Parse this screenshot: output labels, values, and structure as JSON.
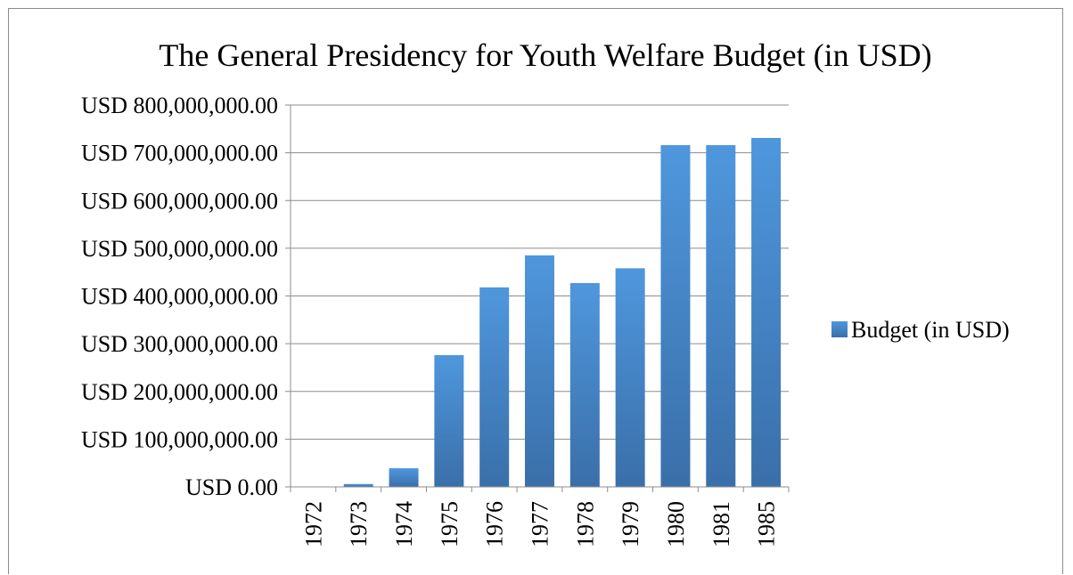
{
  "chart_data": {
    "type": "bar",
    "title": "The General Presidency for Youth Welfare Budget (in USD)",
    "xlabel": "",
    "ylabel": "",
    "categories": [
      "1972",
      "1973",
      "1974",
      "1975",
      "1976",
      "1977",
      "1978",
      "1979",
      "1980",
      "1981",
      "1985"
    ],
    "series": [
      {
        "name": "Budget (in USD)",
        "values": [
          0,
          6000000,
          39000000,
          276000000,
          418000000,
          485000000,
          427000000,
          458000000,
          716000000,
          716000000,
          731000000
        ],
        "color": "#4a8dd1"
      }
    ],
    "ylim": [
      0,
      800000000
    ],
    "yticks": [
      0,
      100000000,
      200000000,
      300000000,
      400000000,
      500000000,
      600000000,
      700000000,
      800000000
    ],
    "ytick_labels": [
      "USD 0.00",
      "USD 100,000,000.00",
      "USD 200,000,000.00",
      "USD 300,000,000.00",
      "USD 400,000,000.00",
      "USD 500,000,000.00",
      "USD 600,000,000.00",
      "USD 700,000,000.00",
      "USD 800,000,000.00"
    ],
    "grid": true,
    "legend_position": "right"
  }
}
